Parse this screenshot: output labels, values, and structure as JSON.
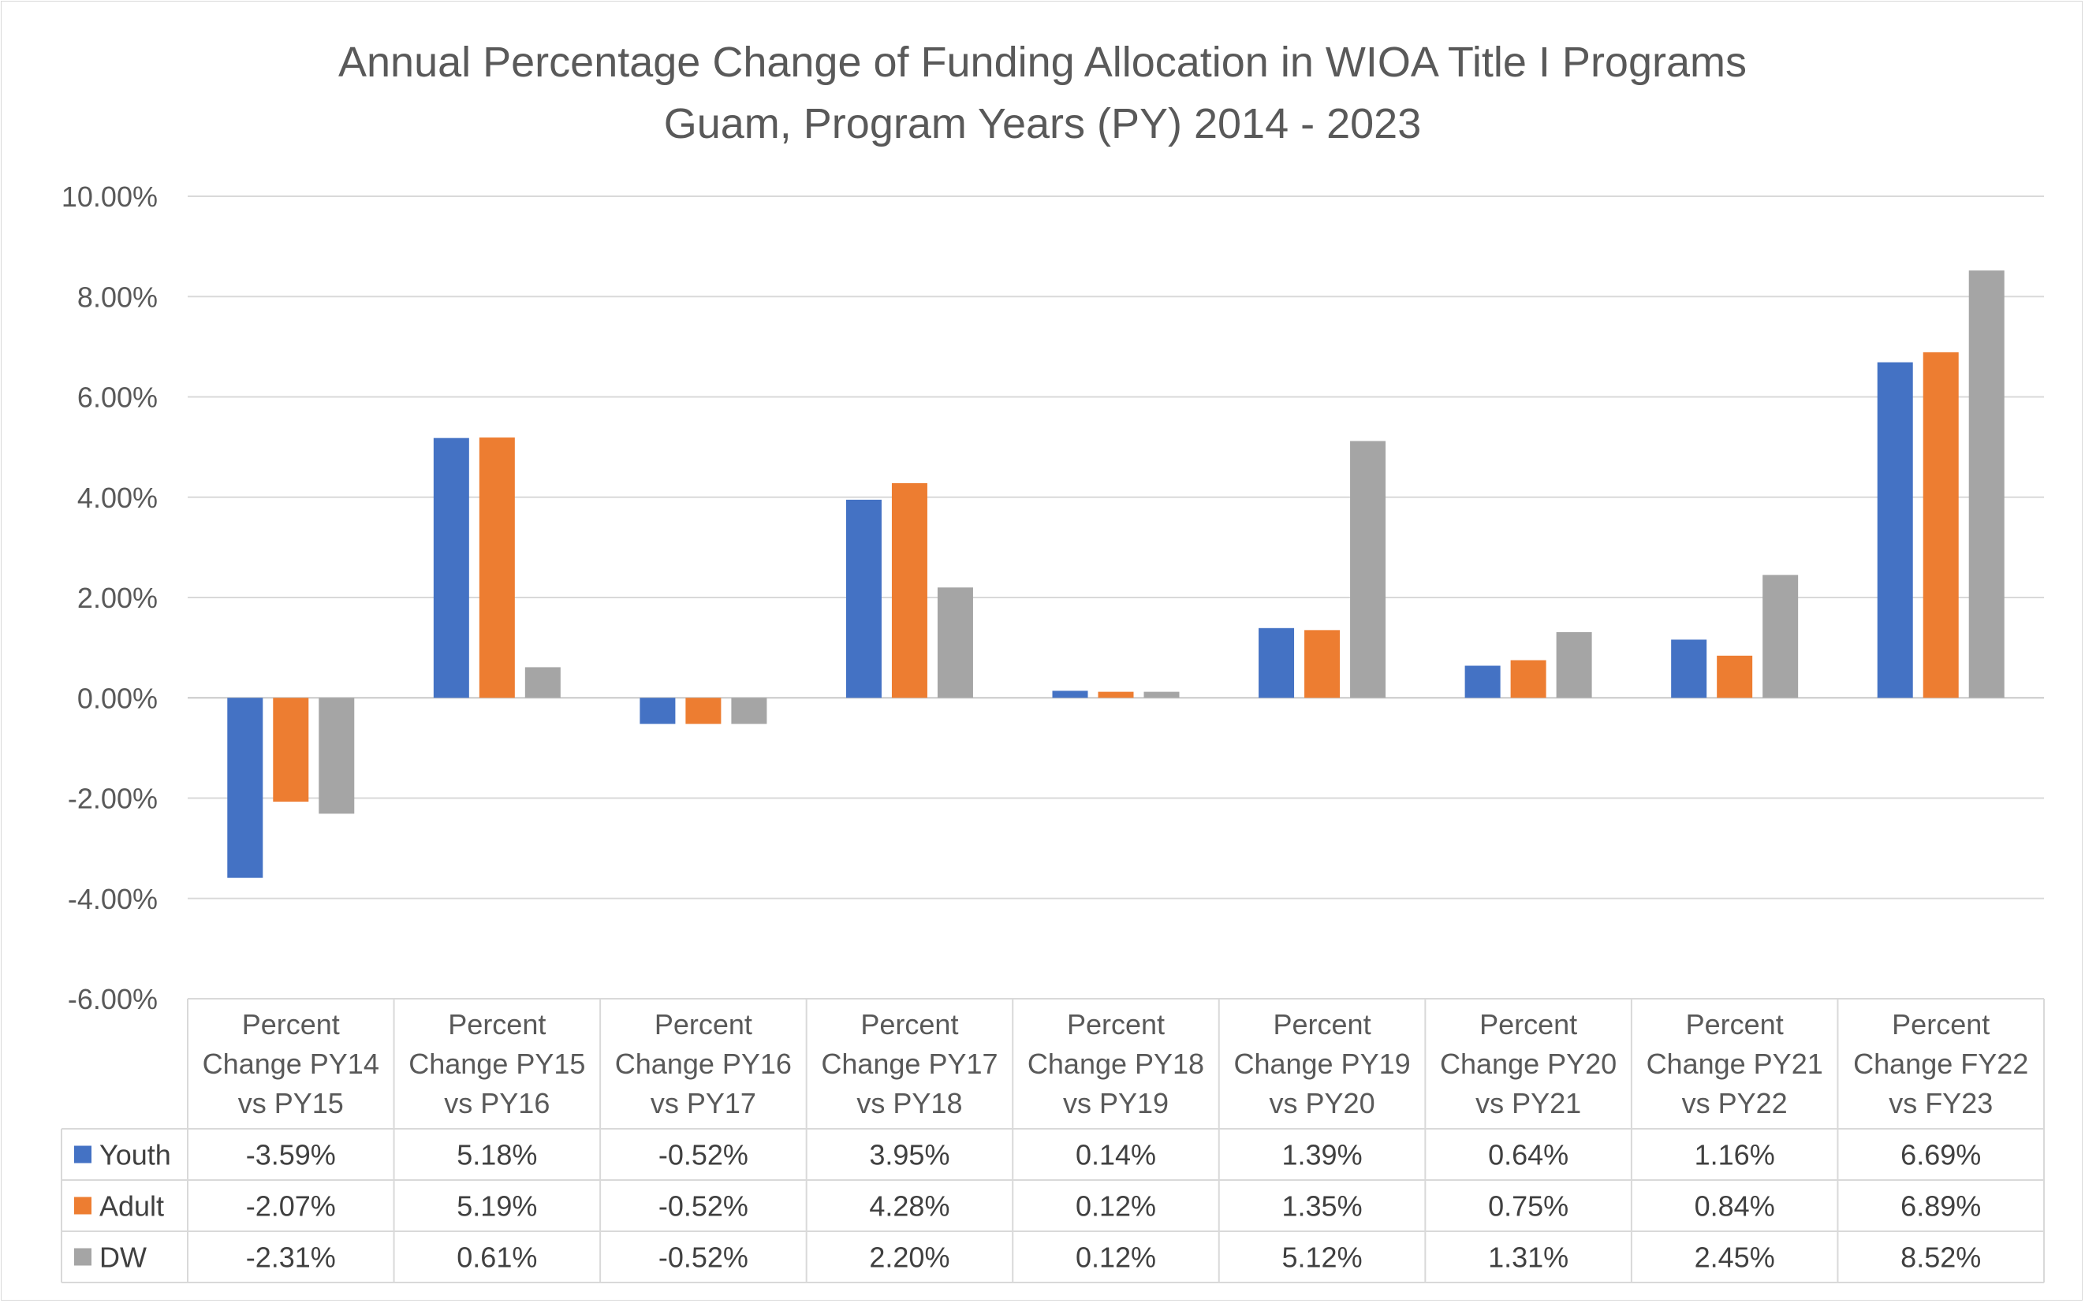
{
  "chart_data": {
    "type": "bar",
    "title": "Annual Percentage Change of Funding Allocation in WIOA Title I Programs",
    "subtitle": "Guam, Program Years (PY) 2014 - 2023",
    "xlabel": "",
    "ylabel": "",
    "ylim": [
      -0.06,
      0.1
    ],
    "yticks": [
      0.1,
      0.08,
      0.06,
      0.04,
      0.02,
      0.0,
      -0.02,
      -0.04,
      -0.06
    ],
    "ytick_labels": [
      "10.00%",
      "8.00%",
      "6.00%",
      "4.00%",
      "2.00%",
      "0.00%",
      "-2.00%",
      "-4.00%",
      "-6.00%"
    ],
    "grid": true,
    "legend": "in data table",
    "categories": [
      [
        "Percent",
        "Change PY14",
        "vs PY15"
      ],
      [
        "Percent",
        "Change PY15",
        "vs PY16"
      ],
      [
        "Percent",
        "Change PY16",
        "vs PY17"
      ],
      [
        "Percent",
        "Change PY17",
        "vs PY18"
      ],
      [
        "Percent",
        "Change PY18",
        "vs PY19"
      ],
      [
        "Percent",
        "Change PY19",
        "vs PY20"
      ],
      [
        "Percent",
        "Change PY20",
        "vs PY21"
      ],
      [
        "Percent",
        "Change PY21",
        "vs PY22"
      ],
      [
        "Percent",
        "Change FY22",
        "vs FY23"
      ]
    ],
    "series": [
      {
        "name": "Youth",
        "color": "#4472c4",
        "values": [
          -0.0359,
          0.0518,
          -0.0052,
          0.0395,
          0.0014,
          0.0139,
          0.0064,
          0.0116,
          0.0669
        ],
        "labels": [
          "-3.59%",
          "5.18%",
          "-0.52%",
          "3.95%",
          "0.14%",
          "1.39%",
          "0.64%",
          "1.16%",
          "6.69%"
        ]
      },
      {
        "name": "Adult",
        "color": "#ed7d31",
        "values": [
          -0.0207,
          0.0519,
          -0.0052,
          0.0428,
          0.0012,
          0.0135,
          0.0075,
          0.0084,
          0.0689
        ],
        "labels": [
          "-2.07%",
          "5.19%",
          "-0.52%",
          "4.28%",
          "0.12%",
          "1.35%",
          "0.75%",
          "0.84%",
          "6.89%"
        ]
      },
      {
        "name": "DW",
        "color": "#a5a5a5",
        "values": [
          -0.0231,
          0.0061,
          -0.0052,
          0.022,
          0.0012,
          0.0512,
          0.0131,
          0.0245,
          0.0852
        ],
        "labels": [
          "-2.31%",
          "0.61%",
          "-0.52%",
          "2.20%",
          "0.12%",
          "5.12%",
          "1.31%",
          "2.45%",
          "8.52%"
        ]
      }
    ]
  }
}
